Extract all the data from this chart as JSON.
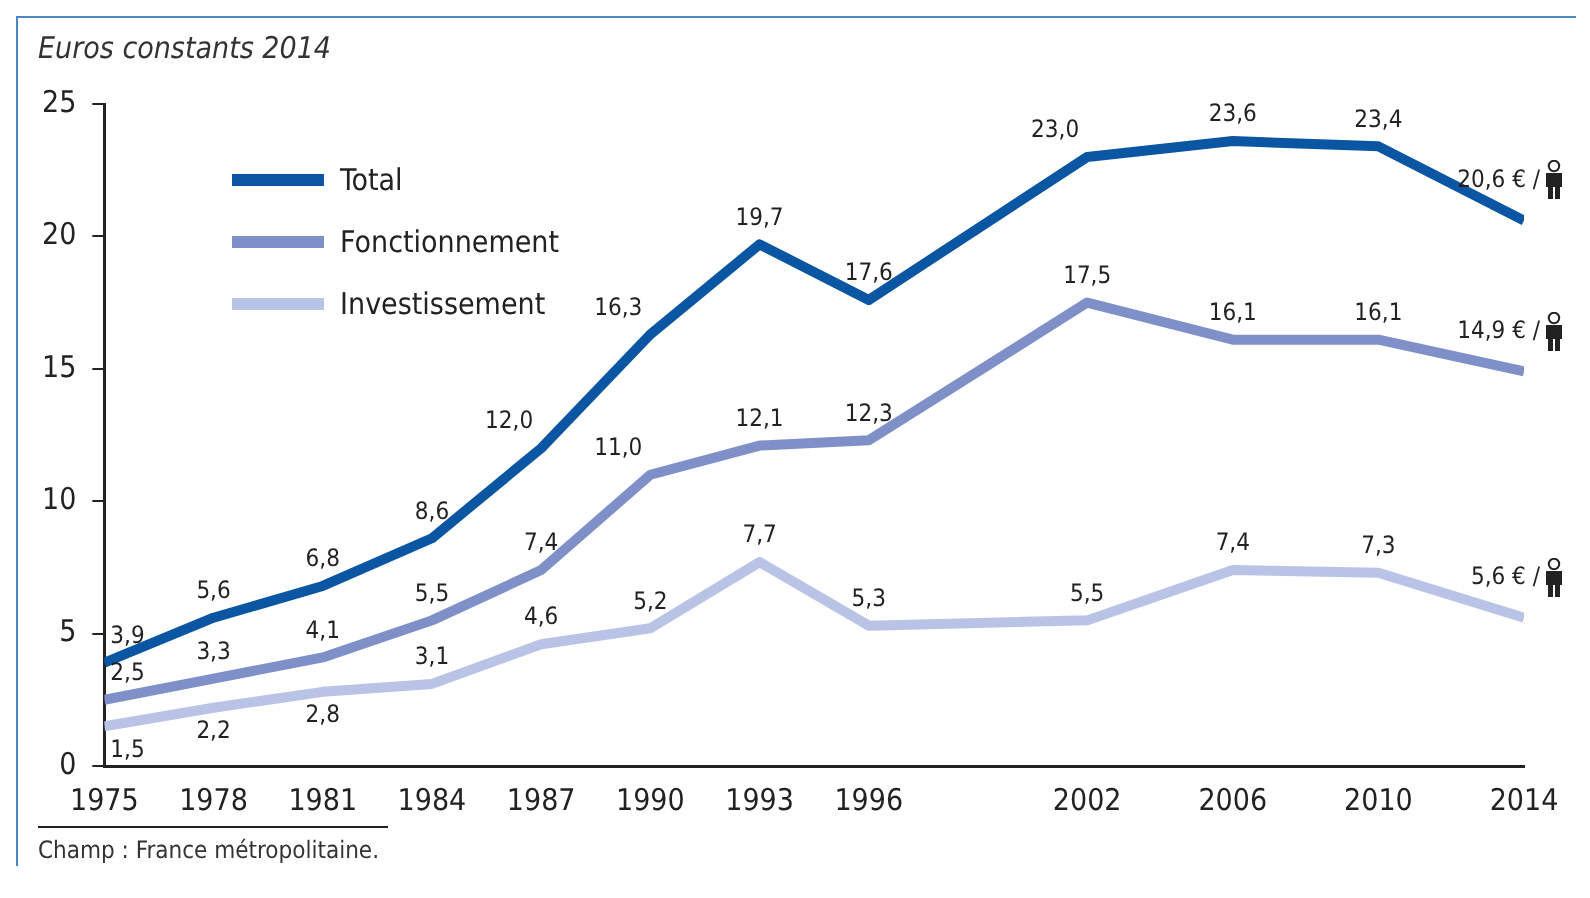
{
  "chart_data": {
    "type": "line",
    "ylabel": "Euros constants 2014",
    "x": [
      1975,
      1978,
      1981,
      1984,
      1987,
      1990,
      1993,
      1996,
      2002,
      2006,
      2010,
      2014
    ],
    "xlim": [
      1975,
      2014
    ],
    "xticks": [
      1975,
      1978,
      1981,
      1984,
      1987,
      1990,
      1993,
      1996,
      2002,
      2006,
      2010,
      2014
    ],
    "ylim": [
      0,
      25
    ],
    "yticks": [
      0,
      5,
      10,
      15,
      20,
      25
    ],
    "series": [
      {
        "name": "Total",
        "color": "#0b56a2",
        "values": [
          3.9,
          5.6,
          6.8,
          8.6,
          12.0,
          16.3,
          19.7,
          17.6,
          23.0,
          23.6,
          23.4,
          20.6
        ],
        "value_labels": [
          "3,9",
          "5,6",
          "6,8",
          "8,6",
          "12,0",
          "16,3",
          "19,7",
          "17,6",
          "23,0",
          "23,6",
          "23,4",
          "20,6 € /"
        ]
      },
      {
        "name": "Fonctionnement",
        "color": "#7f90c9",
        "values": [
          2.5,
          3.3,
          4.1,
          5.5,
          7.4,
          11.0,
          12.1,
          12.3,
          17.5,
          16.1,
          16.1,
          14.9
        ],
        "value_labels": [
          "2,5",
          "3,3",
          "4,1",
          "5,5",
          "7,4",
          "11,0",
          "12,1",
          "12,3",
          "17,5",
          "16,1",
          "16,1",
          "14,9 € /"
        ]
      },
      {
        "name": "Investissement",
        "color": "#b9c3e5",
        "values": [
          1.5,
          2.2,
          2.8,
          3.1,
          4.6,
          5.2,
          7.7,
          5.3,
          5.5,
          7.4,
          7.3,
          5.6
        ],
        "value_labels": [
          "1,5",
          "2,2",
          "2,8",
          "3,1",
          "4,6",
          "5,2",
          "7,7",
          "5,3",
          "5,5",
          "7,4",
          "7,3",
          "5,6 € /"
        ]
      }
    ],
    "legend": "top left",
    "grid": false,
    "marker": "none",
    "line_style": "solid",
    "annotations": [
      "Champ : France métropolitaine."
    ]
  }
}
